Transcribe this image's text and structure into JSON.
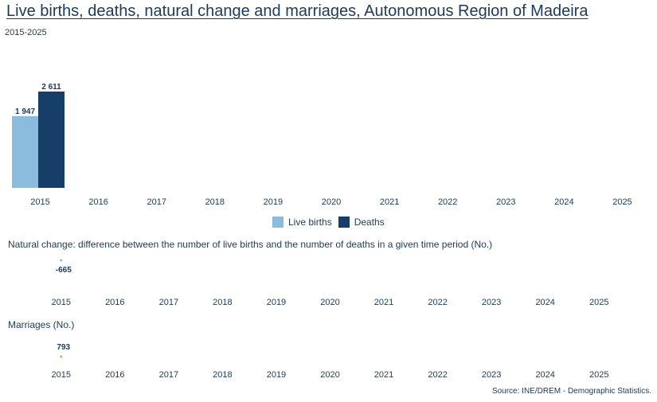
{
  "title": "Live births, deaths, natural change and marriages, Autonomous Region of Madeira",
  "subtitle": "2015-2025",
  "source": "Source: INE/DREM - Demographic Statistics.",
  "colors": {
    "live_births": "#8cbcdd",
    "deaths": "#173e66",
    "natural_change": "#8cbcdd",
    "marriages": "#f0a830",
    "text": "#1b3a5c"
  },
  "chart_data": [
    {
      "type": "bar",
      "categories": [
        "2015",
        "2016",
        "2017",
        "2018",
        "2019",
        "2020",
        "2021",
        "2022",
        "2023",
        "2024",
        "2025"
      ],
      "series": [
        {
          "name": "Live births",
          "values": [
            1947,
            null,
            null,
            null,
            null,
            null,
            null,
            null,
            null,
            null,
            null
          ],
          "labels": [
            "1 947"
          ]
        },
        {
          "name": "Deaths",
          "values": [
            2611,
            null,
            null,
            null,
            null,
            null,
            null,
            null,
            null,
            null,
            null
          ],
          "labels": [
            "2 611"
          ]
        }
      ],
      "ylim": [
        0,
        2611
      ],
      "legend": "bottom-center"
    },
    {
      "type": "line",
      "title": "Natural change: difference between the number of live births and the number of deaths in a given time period (No.)",
      "categories": [
        "2015",
        "2016",
        "2017",
        "2018",
        "2019",
        "2020",
        "2021",
        "2022",
        "2023",
        "2024",
        "2025"
      ],
      "values": [
        -665,
        null,
        null,
        null,
        null,
        null,
        null,
        null,
        null,
        null,
        null
      ],
      "labels": [
        "-665"
      ]
    },
    {
      "type": "line",
      "title": "Marriages (No.)",
      "categories": [
        "2015",
        "2016",
        "2017",
        "2018",
        "2019",
        "2020",
        "2021",
        "2022",
        "2023",
        "2024",
        "2025"
      ],
      "values": [
        793,
        null,
        null,
        null,
        null,
        null,
        null,
        null,
        null,
        null,
        null
      ],
      "labels": [
        "793"
      ]
    }
  ]
}
